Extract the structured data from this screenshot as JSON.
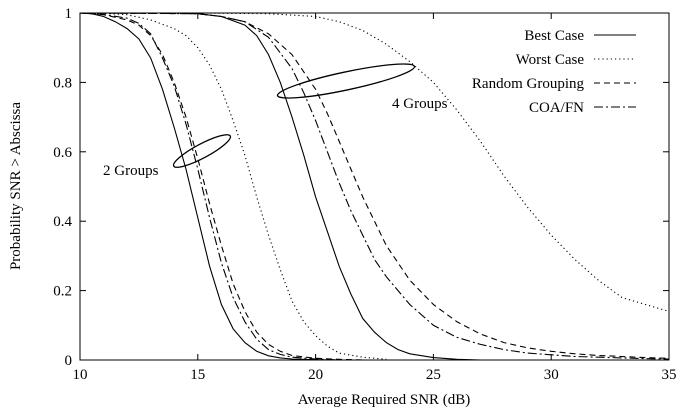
{
  "chart_data": {
    "type": "line",
    "xlabel": "Average Required SNR (dB)",
    "ylabel": "Probability SNR > Abscissa",
    "xlim": [
      10,
      35
    ],
    "ylim": [
      0,
      1
    ],
    "x_ticks": [
      "10",
      "15",
      "20",
      "25",
      "30",
      "35"
    ],
    "y_ticks": [
      "0",
      "0.2",
      "0.4",
      "0.6",
      "0.8",
      "1"
    ],
    "grid": false,
    "legend_position": "top-right",
    "annotations": {
      "two_groups": "2 Groups",
      "four_groups": "4 Groups"
    },
    "series": [
      {
        "name": "Best Case",
        "style": "solid",
        "group": "2 Groups",
        "x": [
          10,
          10.5,
          11,
          11.5,
          12,
          12.5,
          13,
          13.5,
          14,
          14.5,
          15,
          15.5,
          16,
          16.5,
          17,
          17.5,
          18,
          18.5,
          19,
          20,
          21
        ],
        "y": [
          1.0,
          0.998,
          0.99,
          0.975,
          0.955,
          0.925,
          0.87,
          0.78,
          0.67,
          0.55,
          0.41,
          0.27,
          0.16,
          0.09,
          0.05,
          0.025,
          0.012,
          0.006,
          0.003,
          0.001,
          0.0
        ]
      },
      {
        "name": "Worst Case",
        "style": "dotted",
        "group": "2 Groups",
        "x": [
          10,
          11,
          12,
          13,
          14,
          14.5,
          15,
          15.5,
          16,
          16.5,
          17,
          17.5,
          18,
          18.5,
          19,
          19.5,
          20,
          20.5,
          21,
          22,
          23
        ],
        "y": [
          1.0,
          0.999,
          0.995,
          0.98,
          0.955,
          0.935,
          0.9,
          0.85,
          0.78,
          0.69,
          0.59,
          0.47,
          0.36,
          0.26,
          0.17,
          0.11,
          0.07,
          0.04,
          0.02,
          0.008,
          0.002
        ]
      },
      {
        "name": "Random Grouping",
        "style": "dashed",
        "group": "2 Groups",
        "x": [
          10,
          11,
          12,
          12.5,
          13,
          13.5,
          14,
          14.5,
          15,
          15.5,
          16,
          16.5,
          17,
          17.5,
          18,
          18.5,
          19,
          20,
          21,
          22
        ],
        "y": [
          1.0,
          0.995,
          0.98,
          0.965,
          0.935,
          0.88,
          0.8,
          0.7,
          0.58,
          0.45,
          0.33,
          0.22,
          0.14,
          0.08,
          0.045,
          0.025,
          0.013,
          0.005,
          0.002,
          0.0
        ]
      },
      {
        "name": "COA/FN",
        "style": "dashdot",
        "group": "2 Groups",
        "x": [
          10,
          11,
          12,
          12.5,
          13,
          13.5,
          14,
          14.5,
          15,
          15.5,
          16,
          16.5,
          17,
          17.5,
          18,
          18.5,
          19,
          20,
          21
        ],
        "y": [
          1.0,
          0.996,
          0.985,
          0.97,
          0.94,
          0.87,
          0.79,
          0.68,
          0.55,
          0.41,
          0.28,
          0.18,
          0.11,
          0.06,
          0.03,
          0.016,
          0.008,
          0.003,
          0.0
        ]
      },
      {
        "name": "Best Case",
        "style": "solid",
        "group": "4 Groups",
        "x": [
          10,
          14,
          15,
          16,
          17,
          17.5,
          18,
          18.5,
          19,
          19.5,
          20,
          20.5,
          21,
          21.5,
          22,
          22.5,
          23,
          23.5,
          24,
          25,
          26,
          27
        ],
        "y": [
          1.0,
          1.0,
          0.998,
          0.99,
          0.965,
          0.935,
          0.88,
          0.8,
          0.7,
          0.59,
          0.47,
          0.37,
          0.27,
          0.19,
          0.12,
          0.08,
          0.05,
          0.03,
          0.018,
          0.007,
          0.002,
          0.0
        ]
      },
      {
        "name": "Worst Case",
        "style": "dotted",
        "group": "4 Groups",
        "x": [
          10,
          15,
          18,
          20,
          21,
          22,
          23,
          24,
          25,
          26,
          27,
          28,
          29,
          30,
          31,
          32,
          33,
          34,
          35
        ],
        "y": [
          1.0,
          1.0,
          0.998,
          0.99,
          0.975,
          0.95,
          0.91,
          0.86,
          0.8,
          0.72,
          0.63,
          0.53,
          0.44,
          0.36,
          0.29,
          0.23,
          0.18,
          0.16,
          0.14
        ]
      },
      {
        "name": "Random Grouping",
        "style": "dashed",
        "group": "4 Groups",
        "x": [
          10,
          15,
          16,
          17,
          18,
          19,
          20,
          20.5,
          21,
          21.5,
          22,
          22.5,
          23,
          24,
          25,
          26,
          27,
          28,
          29,
          30,
          31,
          32,
          33,
          34,
          35
        ],
        "y": [
          1.0,
          0.998,
          0.99,
          0.975,
          0.94,
          0.88,
          0.78,
          0.71,
          0.63,
          0.55,
          0.47,
          0.4,
          0.33,
          0.23,
          0.16,
          0.11,
          0.075,
          0.05,
          0.035,
          0.025,
          0.018,
          0.013,
          0.01,
          0.007,
          0.005
        ]
      },
      {
        "name": "COA/FN",
        "style": "dashdot",
        "group": "4 Groups",
        "x": [
          10,
          15,
          16,
          17,
          18,
          19,
          19.5,
          20,
          20.5,
          21,
          21.5,
          22,
          22.5,
          23,
          24,
          25,
          26,
          27,
          28,
          29,
          30,
          31,
          32,
          33,
          34,
          35
        ],
        "y": [
          1.0,
          0.998,
          0.99,
          0.975,
          0.93,
          0.84,
          0.77,
          0.69,
          0.6,
          0.51,
          0.43,
          0.36,
          0.29,
          0.24,
          0.16,
          0.1,
          0.065,
          0.045,
          0.03,
          0.02,
          0.015,
          0.01,
          0.008,
          0.006,
          0.004,
          0.003
        ]
      }
    ],
    "legend": [
      {
        "label": "Best Case",
        "style": "solid"
      },
      {
        "label": "Worst Case",
        "style": "dotted"
      },
      {
        "label": "Random Grouping",
        "style": "dashed"
      },
      {
        "label": "COA/FN",
        "style": "dashdot"
      }
    ]
  }
}
